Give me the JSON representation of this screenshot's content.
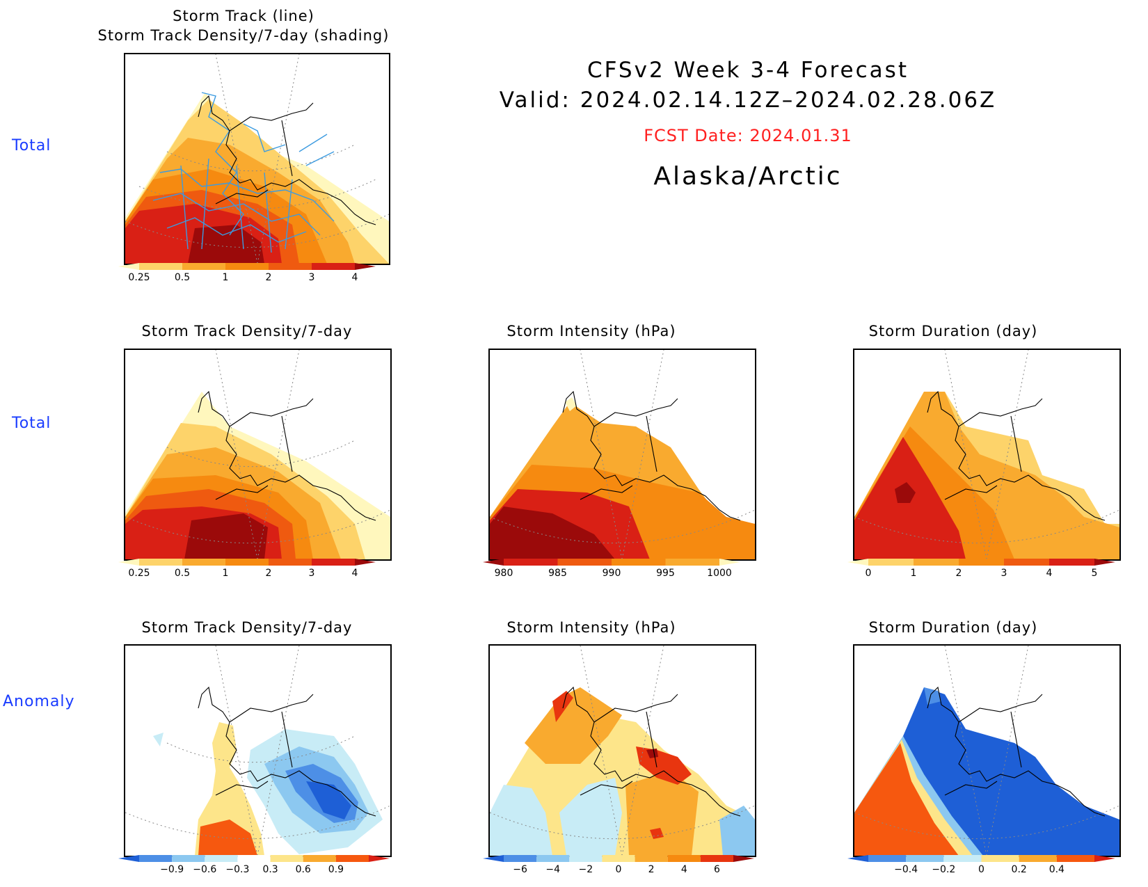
{
  "header": {
    "line1": "CFSv2 Week 3-4 Forecast",
    "line2": "Valid: 2024.02.14.12Z–2024.02.28.06Z",
    "fcst_date": "FCST Date: 2024.01.31",
    "region": "Alaska/Arctic"
  },
  "row_labels": {
    "row1": "Total",
    "row2": "Total",
    "row3": "Anomaly"
  },
  "panels": {
    "p1": {
      "title1": "Storm Track (line)",
      "title2": "Storm Track Density/7-day (shading)"
    },
    "p2": {
      "title": "Storm Track Density/7-day"
    },
    "p3": {
      "title": "Storm Intensity (hPa)"
    },
    "p4": {
      "title": "Storm Duration (day)"
    },
    "p5": {
      "title": "Storm Track Density/7-day"
    },
    "p6": {
      "title": "Storm Intensity (hPa)"
    },
    "p7": {
      "title": "Storm Duration (day)"
    }
  },
  "colorbars": {
    "density_total": {
      "ticks": [
        "0.25",
        "0.5",
        "1",
        "2",
        "3",
        "4"
      ],
      "colors": [
        "#fff7bd",
        "#fdd36a",
        "#f9aa2f",
        "#f68a10",
        "#ef5a10",
        "#d92015",
        "#9b0a0a"
      ]
    },
    "intensity_total": {
      "ticks": [
        "980",
        "985",
        "990",
        "995",
        "1000"
      ],
      "colors": [
        "#9b0a0a",
        "#d92015",
        "#ef5a10",
        "#f68a10",
        "#f9aa2f",
        "#fff7bd"
      ]
    },
    "duration_total": {
      "ticks": [
        "0",
        "1",
        "2",
        "3",
        "4",
        "5"
      ],
      "colors": [
        "#fff7bd",
        "#fdd36a",
        "#f9aa2f",
        "#f68a10",
        "#ef5a10",
        "#d92015",
        "#9b0a0a"
      ]
    },
    "density_anom": {
      "ticks": [
        "−0.9",
        "−0.6",
        "−0.3",
        "0.3",
        "0.6",
        "0.9"
      ],
      "colors": [
        "#1e5fd6",
        "#4d8fe6",
        "#8cc8f0",
        "#c8ecf6",
        "#ffffff",
        "#fde58a",
        "#f9aa2f",
        "#f6580f",
        "#d92015"
      ]
    },
    "intensity_anom": {
      "ticks": [
        "−6",
        "−4",
        "−2",
        "0",
        "2",
        "4",
        "6"
      ],
      "colors": [
        "#1e5fd6",
        "#4d8fe6",
        "#8cc8f0",
        "#c8ecf6",
        "#fde58a",
        "#f9aa2f",
        "#f68a10",
        "#e8350f",
        "#9b0a0a"
      ]
    },
    "duration_anom": {
      "ticks": [
        "−0.4",
        "−0.2",
        "0",
        "0.2",
        "0.4"
      ],
      "colors": [
        "#1e5fd6",
        "#4d8fe6",
        "#8cc8f0",
        "#c8ecf6",
        "#fde58a",
        "#f9aa2f",
        "#f6580f",
        "#d92015"
      ]
    }
  }
}
